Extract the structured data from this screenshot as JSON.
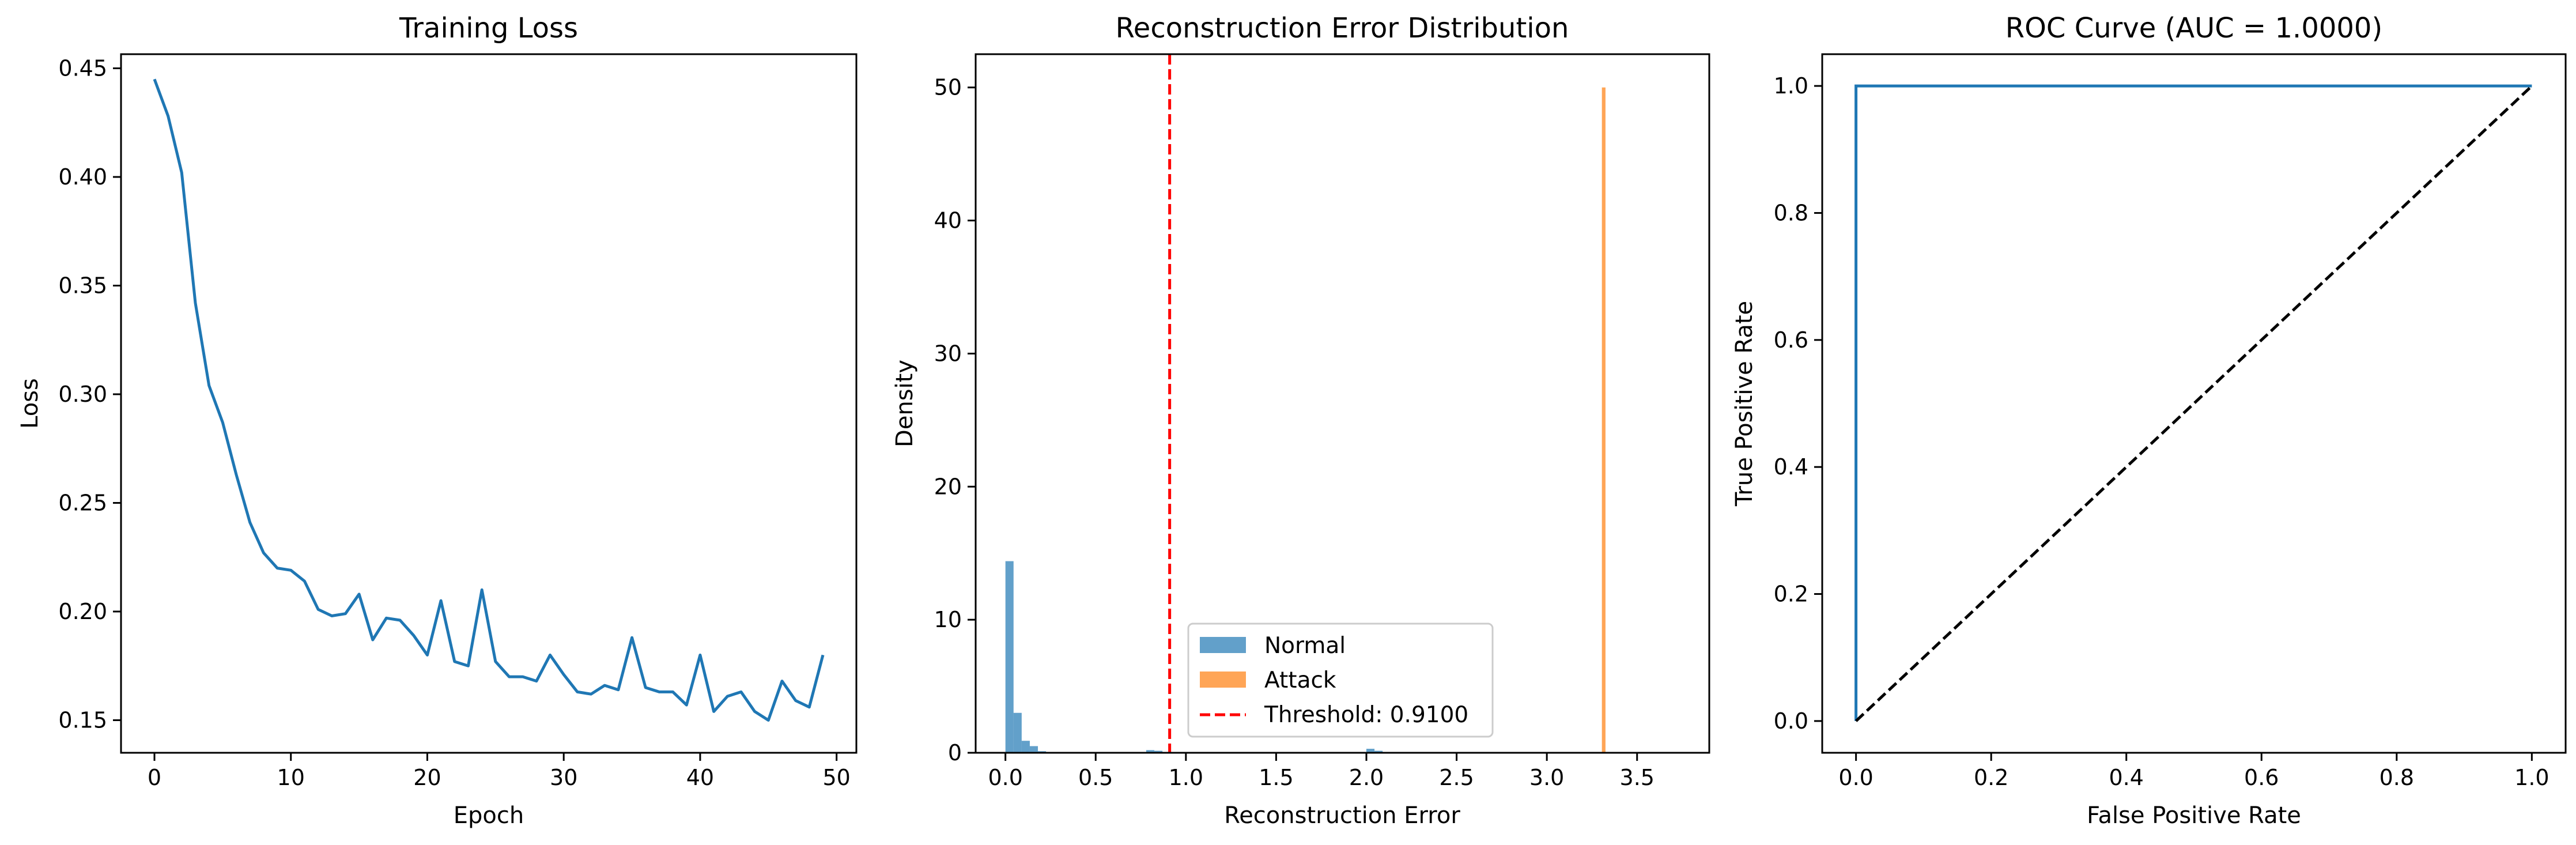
{
  "chart_data": [
    {
      "type": "line",
      "title": "Training Loss",
      "xlabel": "Epoch",
      "ylabel": "Loss",
      "xlim": [
        -2.45,
        51.45
      ],
      "ylim": [
        0.135,
        0.4565
      ],
      "xticks": [
        0,
        10,
        20,
        30,
        40,
        50
      ],
      "yticks": [
        0.15,
        0.2,
        0.25,
        0.3,
        0.35,
        0.4,
        0.45
      ],
      "xtick_labels": [
        "0",
        "10",
        "20",
        "30",
        "40",
        "50"
      ],
      "ytick_labels": [
        "0.15",
        "0.20",
        "0.25",
        "0.30",
        "0.35",
        "0.40",
        "0.45"
      ],
      "grid": false,
      "colors": {
        "line": "#1f77b4"
      },
      "x": [
        0,
        1,
        2,
        3,
        4,
        5,
        6,
        7,
        8,
        9,
        10,
        11,
        12,
        13,
        14,
        15,
        16,
        17,
        18,
        19,
        20,
        21,
        22,
        23,
        24,
        25,
        26,
        27,
        28,
        29,
        30,
        31,
        32,
        33,
        34,
        35,
        36,
        37,
        38,
        39,
        40,
        41,
        42,
        43,
        44,
        45,
        46,
        47,
        48,
        49
      ],
      "y": [
        0.445,
        0.428,
        0.402,
        0.342,
        0.304,
        0.287,
        0.263,
        0.241,
        0.227,
        0.22,
        0.219,
        0.214,
        0.201,
        0.198,
        0.199,
        0.208,
        0.187,
        0.197,
        0.196,
        0.189,
        0.18,
        0.205,
        0.177,
        0.175,
        0.21,
        0.177,
        0.17,
        0.17,
        0.168,
        0.18,
        0.171,
        0.163,
        0.162,
        0.166,
        0.164,
        0.188,
        0.165,
        0.163,
        0.163,
        0.157,
        0.18,
        0.154,
        0.161,
        0.163,
        0.154,
        0.15,
        0.168,
        0.159,
        0.156,
        0.18
      ]
    },
    {
      "type": "bar",
      "title": "Reconstruction Error Distribution",
      "xlabel": "Reconstruction Error",
      "ylabel": "Density",
      "xlim": [
        -0.165,
        3.9
      ],
      "ylim": [
        0,
        52.5
      ],
      "xticks": [
        0.0,
        0.5,
        1.0,
        1.5,
        2.0,
        2.5,
        3.0,
        3.5
      ],
      "yticks": [
        0,
        10,
        20,
        30,
        40,
        50
      ],
      "xtick_labels": [
        "0.0",
        "0.5",
        "1.0",
        "1.5",
        "2.0",
        "2.5",
        "3.0",
        "3.5"
      ],
      "ytick_labels": [
        "0",
        "10",
        "20",
        "30",
        "40",
        "50"
      ],
      "grid": false,
      "legend_position": "lower center",
      "series": [
        {
          "name": "Normal",
          "color": "#1f77b4",
          "opacity": 0.7,
          "bins": [
            {
              "x0": 0.0,
              "x1": 0.045,
              "value": 14.4
            },
            {
              "x0": 0.045,
              "x1": 0.09,
              "value": 3.0
            },
            {
              "x0": 0.09,
              "x1": 0.135,
              "value": 0.9
            },
            {
              "x0": 0.135,
              "x1": 0.18,
              "value": 0.5
            },
            {
              "x0": 0.18,
              "x1": 0.225,
              "value": 0.12
            },
            {
              "x0": 0.225,
              "x1": 0.27,
              "value": 0.06
            },
            {
              "x0": 0.5,
              "x1": 0.545,
              "value": 0.05
            },
            {
              "x0": 0.78,
              "x1": 0.825,
              "value": 0.2
            },
            {
              "x0": 0.825,
              "x1": 0.87,
              "value": 0.15
            },
            {
              "x0": 1.15,
              "x1": 1.195,
              "value": 0.05
            },
            {
              "x0": 2.0,
              "x1": 2.045,
              "value": 0.3
            },
            {
              "x0": 2.045,
              "x1": 2.09,
              "value": 0.15
            }
          ]
        },
        {
          "name": "Attack",
          "color": "#ff7f0e",
          "opacity": 0.7,
          "bins": [
            {
              "x0": 3.305,
              "x1": 3.325,
              "value": 50
            }
          ]
        }
      ],
      "threshold": {
        "name": "Threshold: 0.9100",
        "value": 0.91,
        "color": "#ff0000"
      }
    },
    {
      "type": "line",
      "title": "ROC Curve (AUC = 1.0000)",
      "xlabel": "False Positive Rate",
      "ylabel": "True Positive Rate",
      "xlim": [
        -0.05,
        1.05
      ],
      "ylim": [
        -0.05,
        1.05
      ],
      "xticks": [
        0.0,
        0.2,
        0.4,
        0.6,
        0.8,
        1.0
      ],
      "yticks": [
        0.0,
        0.2,
        0.4,
        0.6,
        0.8,
        1.0
      ],
      "xtick_labels": [
        "0.0",
        "0.2",
        "0.4",
        "0.6",
        "0.8",
        "1.0"
      ],
      "ytick_labels": [
        "0.0",
        "0.2",
        "0.4",
        "0.6",
        "0.8",
        "1.0"
      ],
      "grid": false,
      "series": [
        {
          "color": "#1f77b4",
          "style": "solid",
          "x": [
            0,
            0,
            1
          ],
          "y": [
            0,
            1,
            1
          ]
        },
        {
          "color": "#000000",
          "style": "dashed",
          "x": [
            0,
            1
          ],
          "y": [
            0,
            1
          ]
        }
      ]
    }
  ]
}
